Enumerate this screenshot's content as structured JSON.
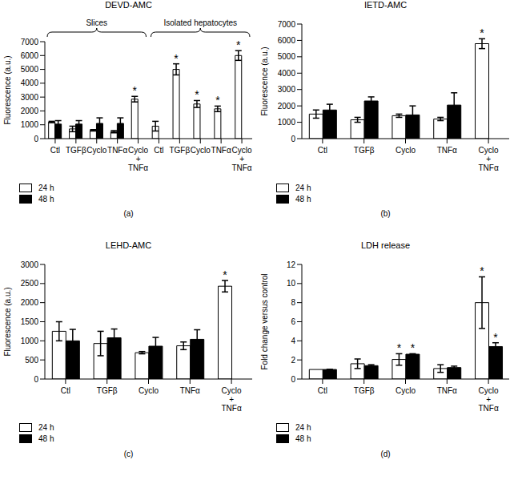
{
  "chart_data": [
    {
      "type": "bar",
      "title": "DEVD-AMC",
      "panel_label": "(a)",
      "y_label": "Fluorescence (a.u.)",
      "legend": "bottom",
      "significance_mark": "*",
      "categories": [
        "Ctl",
        "TGFβ",
        "Cyclo",
        "TNFα",
        "Cyclo + TNFα",
        "Ctl",
        "TGFβ",
        "Cyclo",
        "TNFα",
        "Cyclo + TNFα"
      ],
      "groups": [
        {
          "label": "Slices",
          "from": 0,
          "to": 4
        },
        {
          "label": "Isolated hepatocytes",
          "from": 5,
          "to": 9
        }
      ],
      "ylim": [
        0,
        7000
      ],
      "yticks": [
        0,
        1000,
        2000,
        3000,
        4000,
        5000,
        6000,
        7000
      ],
      "series": [
        {
          "name": "24 h",
          "color": "#ffffff",
          "values": [
            1200,
            700,
            600,
            500,
            2850,
            900,
            5000,
            2500,
            2150,
            6000
          ],
          "errors": [
            50,
            200,
            50,
            80,
            200,
            350,
            400,
            250,
            200,
            350
          ],
          "significant": [
            false,
            false,
            false,
            false,
            true,
            false,
            true,
            true,
            true,
            true
          ]
        },
        {
          "name": "48 h",
          "color": "#000000",
          "values": [
            1050,
            1050,
            1100,
            1100,
            null,
            null,
            null,
            null,
            null,
            null
          ],
          "errors": [
            250,
            250,
            400,
            400,
            null,
            null,
            null,
            null,
            null,
            null
          ],
          "significant": [
            false,
            false,
            false,
            false,
            false,
            false,
            false,
            false,
            false,
            false
          ]
        }
      ]
    },
    {
      "type": "bar",
      "title": "IETD-AMC",
      "panel_label": "(b)",
      "y_label": "Fluorescence (a.u.)",
      "legend": "bottom",
      "significance_mark": "*",
      "categories": [
        "Ctl",
        "TGFβ",
        "Cyclo",
        "TNFα",
        "Cyclo + TNFα"
      ],
      "ylim": [
        0,
        7000
      ],
      "yticks": [
        0,
        1000,
        2000,
        3000,
        4000,
        5000,
        6000,
        7000
      ],
      "series": [
        {
          "name": "24 h",
          "color": "#ffffff",
          "values": [
            1500,
            1150,
            1400,
            1200,
            5800
          ],
          "errors": [
            250,
            150,
            100,
            100,
            300
          ],
          "significant": [
            false,
            false,
            false,
            false,
            true
          ]
        },
        {
          "name": "48 h",
          "color": "#000000",
          "values": [
            1750,
            2300,
            1450,
            2050,
            null
          ],
          "errors": [
            350,
            250,
            550,
            750,
            null
          ],
          "significant": [
            false,
            false,
            false,
            false,
            false
          ]
        }
      ]
    },
    {
      "type": "bar",
      "title": "LEHD-AMC",
      "panel_label": "(c)",
      "y_label": "Fluorescence (a.u.)",
      "legend": "bottom",
      "significance_mark": "*",
      "categories": [
        "Ctl",
        "TGFβ",
        "Cyclo",
        "TNFα",
        "Cyclo + TNFα"
      ],
      "ylim": [
        0,
        3000
      ],
      "yticks": [
        0,
        500,
        1000,
        1500,
        2000,
        2500,
        3000
      ],
      "series": [
        {
          "name": "24 h",
          "color": "#ffffff",
          "values": [
            1250,
            930,
            690,
            870,
            2430
          ],
          "errors": [
            250,
            320,
            30,
            100,
            150
          ],
          "significant": [
            false,
            false,
            false,
            false,
            true
          ]
        },
        {
          "name": "48 h",
          "color": "#000000",
          "values": [
            1000,
            1080,
            860,
            1040,
            null
          ],
          "errors": [
            300,
            230,
            230,
            250,
            null
          ],
          "significant": [
            false,
            false,
            false,
            false,
            false
          ]
        }
      ]
    },
    {
      "type": "bar",
      "title": "LDH release",
      "panel_label": "(d)",
      "y_label": "Fold change versus control",
      "legend": "bottom",
      "significance_mark": "*",
      "categories": [
        "Ctl",
        "TGFβ",
        "Cyclo",
        "TNFα",
        "Cyclo + TNFα"
      ],
      "ylim": [
        0,
        12
      ],
      "yticks": [
        0,
        2,
        4,
        6,
        8,
        10,
        12
      ],
      "series": [
        {
          "name": "24 h",
          "color": "#ffffff",
          "values": [
            1,
            1.6,
            2.05,
            1.1,
            8.0
          ],
          "errors": [
            0,
            0.5,
            0.6,
            0.4,
            2.7
          ],
          "significant": [
            false,
            false,
            true,
            false,
            true
          ]
        },
        {
          "name": "48 h",
          "color": "#000000",
          "values": [
            1,
            1.4,
            2.6,
            1.2,
            3.4
          ],
          "errors": [
            0.02,
            0.1,
            0.05,
            0.15,
            0.4
          ],
          "significant": [
            false,
            false,
            true,
            false,
            true
          ]
        }
      ]
    }
  ]
}
